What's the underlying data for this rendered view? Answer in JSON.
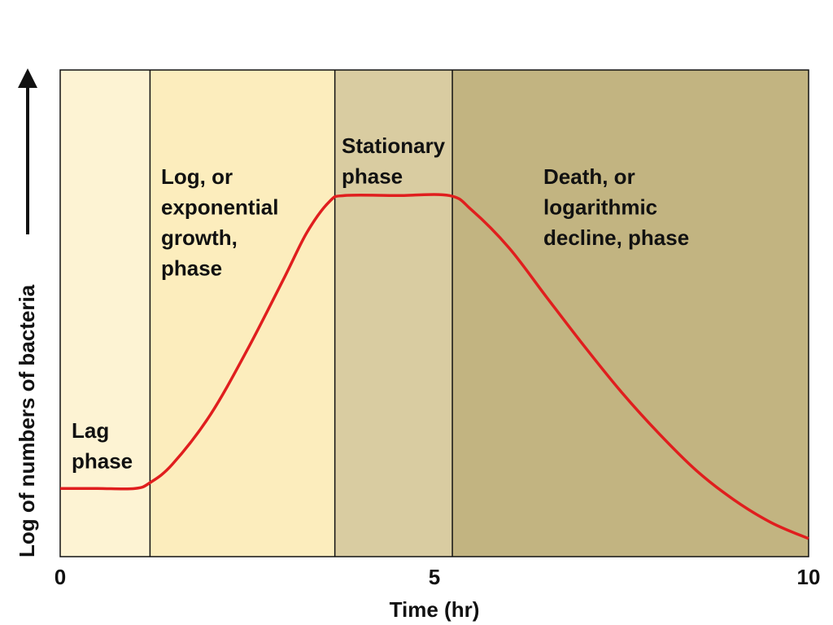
{
  "chart_data": {
    "type": "line",
    "xlabel": "Time (hr)",
    "ylabel": "Log of numbers of bacteria",
    "xlim": [
      0,
      10
    ],
    "xticks": [
      0,
      5,
      10
    ],
    "ylim": [
      0,
      10
    ],
    "phases": [
      {
        "label": [
          "Lag",
          "phase"
        ],
        "start": 0,
        "end": 1.2,
        "color": "#fdf3d3"
      },
      {
        "label": [
          "Log, or",
          "exponential",
          "growth,",
          "phase"
        ],
        "start": 1.2,
        "end": 3.67,
        "color": "#fcedbd"
      },
      {
        "label": [
          "Stationary",
          "phase"
        ],
        "start": 3.67,
        "end": 5.24,
        "color": "#d9cca1"
      },
      {
        "label": [
          "Death, or",
          "logarithmic",
          "decline, phase"
        ],
        "start": 5.24,
        "end": 10,
        "color": "#c2b481"
      }
    ],
    "x": [
      0,
      0.5,
      1.0,
      1.2,
      1.5,
      2.0,
      2.5,
      3.0,
      3.3,
      3.6,
      3.8,
      4.5,
      5.2,
      5.5,
      6.0,
      6.5,
      7.0,
      7.5,
      8.0,
      8.5,
      9.0,
      9.5,
      10
    ],
    "series": [
      {
        "color": "#e01e1e",
        "values": [
          1.4,
          1.4,
          1.4,
          1.52,
          1.9,
          2.9,
          4.25,
          5.75,
          6.67,
          7.3,
          7.42,
          7.42,
          7.42,
          7.12,
          6.34,
          5.33,
          4.33,
          3.38,
          2.53,
          1.77,
          1.17,
          0.7,
          0.37
        ]
      }
    ]
  }
}
